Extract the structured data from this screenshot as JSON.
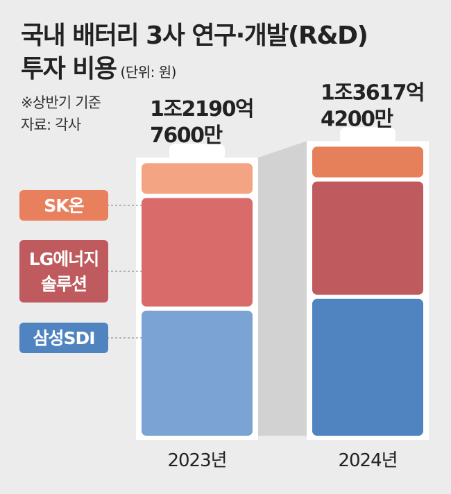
{
  "title": {
    "line1": "국내 배터리 3사 연구·개발(R&D)",
    "line2": "투자 비용",
    "unit": "(단위: 원)"
  },
  "notes": {
    "basis": "※상반기 기준",
    "source": "자료: 각사"
  },
  "chart_data": {
    "type": "bar",
    "stacked": true,
    "categories": [
      "2023년",
      "2024년"
    ],
    "totals": [
      [
        "1조2190억",
        "7600만"
      ],
      [
        "1조3617억",
        "4200만"
      ]
    ],
    "series": [
      {
        "name": "삼성SDI",
        "values": [
          0.53,
          0.58
        ],
        "colors": [
          "#7ba3d3",
          "#4f84c0"
        ]
      },
      {
        "name": "LG에너지솔루션",
        "values": [
          0.46,
          0.48
        ],
        "colors": [
          "#d96b6a",
          "#bf5b5e"
        ]
      },
      {
        "name": "SK온",
        "values": [
          0.13,
          0.13
        ],
        "colors": [
          "#f3a482",
          "#e6805b"
        ]
      }
    ],
    "legend_placement": "left"
  }
}
